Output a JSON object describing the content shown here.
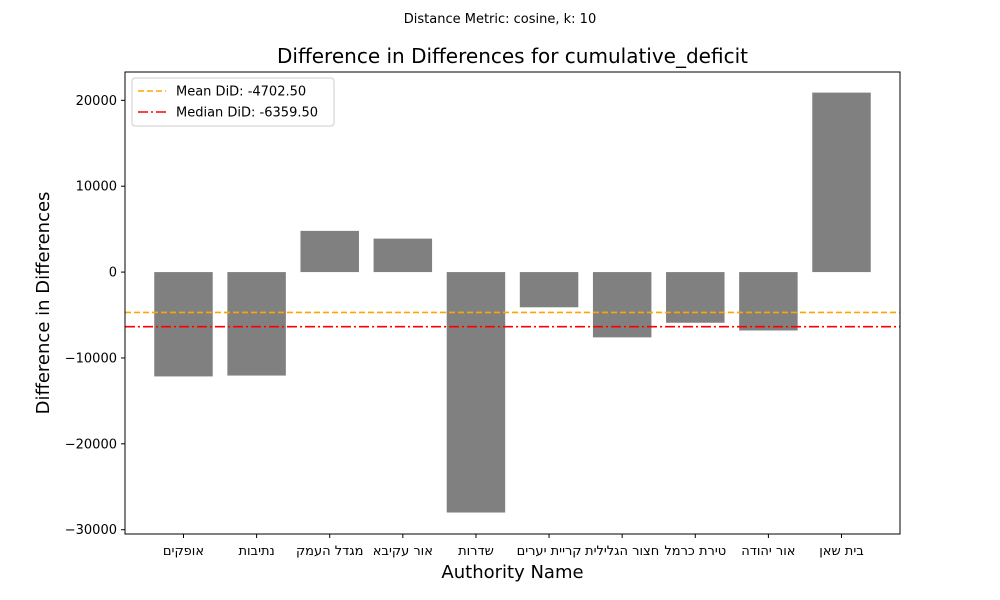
{
  "chart_data": {
    "type": "bar",
    "suptitle": "Distance Metric: cosine, k: 10",
    "title": "Difference in Differences for cumulative_deficit",
    "xlabel": "Authority Name",
    "ylabel": "Difference in Differences",
    "categories": [
      "אופקים",
      "נתיבות",
      "מגדל העמק",
      "אור עקיבא",
      "שדרות",
      "קריית יערים",
      "חצור הגלילית",
      "טירת כרמל",
      "אור יהודה",
      "בית שאן"
    ],
    "values": [
      -12150,
      -12050,
      4800,
      3900,
      -28000,
      -4100,
      -7600,
      -5900,
      -6800,
      20900
    ],
    "ylim": [
      -30500,
      23300
    ],
    "yticks": [
      -30000,
      -20000,
      -10000,
      0,
      10000,
      20000
    ],
    "ytick_labels": [
      "−30000",
      "−20000",
      "−10000",
      "0",
      "10000",
      "20000"
    ],
    "bar_color": "#808080",
    "reference_lines": [
      {
        "label": "Mean DiD: -4702.50",
        "value": -4702.5,
        "color": "#FFA500",
        "style": "dashed"
      },
      {
        "label": "Median DiD: -6359.50",
        "value": -6359.5,
        "color": "#FF0000",
        "style": "dashdot"
      }
    ],
    "legend_position": "top-left",
    "grid": false
  }
}
